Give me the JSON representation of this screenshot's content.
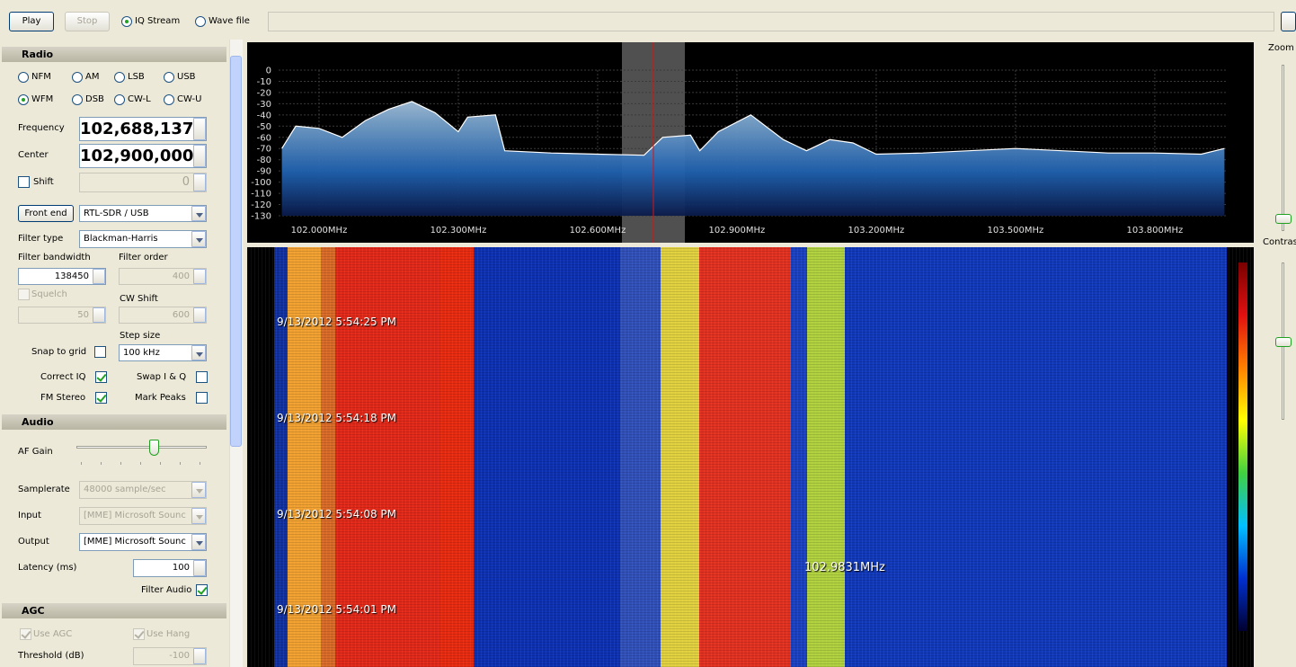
{
  "toolbar": {
    "play": "Play",
    "stop": "Stop",
    "iq_stream": "IQ Stream",
    "wave_file": "Wave file"
  },
  "radio": {
    "title": "Radio",
    "modes": [
      "NFM",
      "AM",
      "LSB",
      "USB",
      "WFM",
      "DSB",
      "CW-L",
      "CW-U"
    ],
    "frequency_label": "Frequency",
    "frequency": "102,688,137",
    "center_label": "Center",
    "center": "102,900,000",
    "shift_label": "Shift",
    "shift": "0",
    "front_end": "Front end",
    "device": "RTL-SDR / USB",
    "filter_type_label": "Filter type",
    "filter_type": "Blackman-Harris",
    "filter_bandwidth_label": "Filter bandwidth",
    "filter_bandwidth": "138450",
    "filter_order_label": "Filter order",
    "filter_order": "400",
    "squelch_label": "Squelch",
    "squelch": "50",
    "cw_shift_label": "CW Shift",
    "cw_shift": "600",
    "step_size_label": "Step size",
    "snap_to_grid": "Snap to grid",
    "step_size": "100 kHz",
    "correct_iq": "Correct IQ",
    "swap_iq": "Swap I & Q",
    "fm_stereo": "FM Stereo",
    "mark_peaks": "Mark Peaks"
  },
  "audio": {
    "title": "Audio",
    "af_gain_label": "AF Gain",
    "samplerate_label": "Samplerate",
    "samplerate": "48000 sample/sec",
    "input_label": "Input",
    "input": "[MME] Microsoft Sounc",
    "output_label": "Output",
    "output": "[MME] Microsoft Sounc",
    "latency_label": "Latency (ms)",
    "latency": "100",
    "filter_audio": "Filter Audio"
  },
  "agc": {
    "title": "AGC",
    "use_agc": "Use AGC",
    "use_hang": "Use Hang",
    "threshold_label": "Threshold (dB)",
    "threshold": "-100"
  },
  "spectrum": {
    "ylim": [
      -130,
      0
    ],
    "yticks": [
      0,
      -10,
      -20,
      -30,
      -40,
      -50,
      -60,
      -70,
      -80,
      -90,
      -100,
      -110,
      -120,
      -130
    ],
    "xlim": [
      101.913,
      103.955
    ],
    "xticks": [
      {
        "value": 102.0,
        "label": "102.000MHz"
      },
      {
        "value": 102.3,
        "label": "102.300MHz"
      },
      {
        "value": 102.6,
        "label": "102.600MHz"
      },
      {
        "value": 102.9,
        "label": "102.900MHz"
      },
      {
        "value": 103.2,
        "label": "103.200MHz"
      },
      {
        "value": 103.5,
        "label": "103.500MHz"
      },
      {
        "value": 103.8,
        "label": "103.800MHz"
      }
    ],
    "x": [
      101.92,
      101.95,
      102.0,
      102.05,
      102.1,
      102.15,
      102.2,
      102.25,
      102.3,
      102.32,
      102.38,
      102.4,
      102.5,
      102.6,
      102.7,
      102.74,
      102.8,
      102.82,
      102.86,
      102.93,
      103.0,
      103.05,
      103.1,
      103.15,
      103.2,
      103.3,
      103.4,
      103.5,
      103.6,
      103.7,
      103.8,
      103.9,
      103.95
    ],
    "values": [
      -70,
      -50,
      -52,
      -60,
      -45,
      -35,
      -28,
      -38,
      -55,
      -42,
      -40,
      -72,
      -74,
      -75,
      -76,
      -60,
      -58,
      -72,
      -55,
      -40,
      -62,
      -72,
      -62,
      -65,
      -75,
      -74,
      -72,
      -70,
      -72,
      -74,
      -74,
      -75,
      -70
    ]
  },
  "waterfall": {
    "timestamps": [
      "9/13/2012 5:54:25 PM",
      "9/13/2012 5:54:18 PM",
      "9/13/2012 5:54:08 PM",
      "9/13/2012 5:54:01 PM"
    ],
    "marker": "102.9831MHz"
  },
  "side": {
    "zoom": "Zoom",
    "contrast": "Contrast"
  }
}
